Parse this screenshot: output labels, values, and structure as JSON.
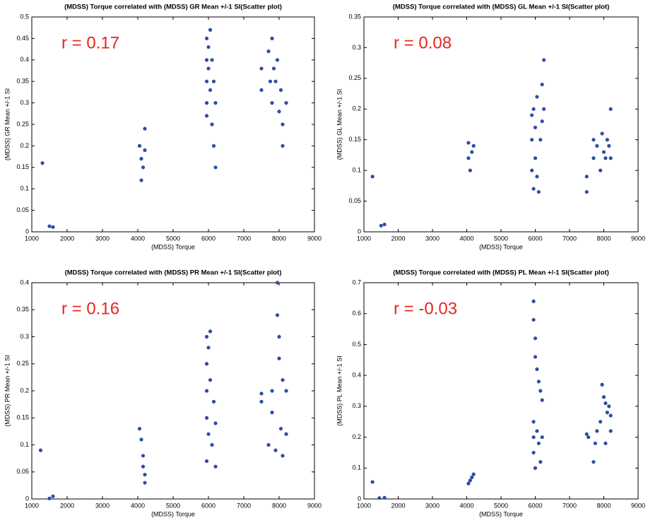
{
  "chart_data": [
    {
      "type": "scatter",
      "title": "(MDSS) Torque correlated with (MDSS) GR Mean +/-1 SI(Scatter plot)",
      "xlabel": "(MDSS) Torque",
      "ylabel": "(MDSS) GR Mean +/-1 SI",
      "annotation": "r = 0.17",
      "color": "#2c4ea3",
      "xlim": [
        1000,
        9000
      ],
      "xticks": [
        1000,
        2000,
        3000,
        4000,
        5000,
        6000,
        7000,
        8000,
        9000
      ],
      "ylim": [
        0,
        0.5
      ],
      "yticks": [
        0,
        0.05,
        0.1,
        0.15,
        0.2,
        0.25,
        0.3,
        0.35,
        0.4,
        0.45,
        0.5
      ],
      "x": [
        1300,
        1500,
        1600,
        4050,
        4100,
        4100,
        4150,
        4200,
        4200,
        5950,
        5950,
        5950,
        5950,
        5950,
        6000,
        6000,
        6050,
        6050,
        6100,
        6100,
        6150,
        6150,
        6200,
        6200,
        7500,
        7500,
        7700,
        7800,
        7800,
        7850,
        7900,
        7950,
        8000,
        8050,
        8100,
        8100,
        8200,
        7750
      ],
      "y": [
        0.16,
        0.013,
        0.011,
        0.2,
        0.12,
        0.17,
        0.15,
        0.24,
        0.19,
        0.45,
        0.4,
        0.35,
        0.3,
        0.27,
        0.43,
        0.38,
        0.47,
        0.33,
        0.25,
        0.4,
        0.2,
        0.35,
        0.15,
        0.3,
        0.38,
        0.33,
        0.42,
        0.45,
        0.3,
        0.38,
        0.35,
        0.4,
        0.28,
        0.33,
        0.25,
        0.2,
        0.3,
        0.35
      ]
    },
    {
      "type": "scatter",
      "title": "(MDSS) Torque correlated with (MDSS) GL Mean +/-1 SI(Scatter plot)",
      "xlabel": "(MDSS) Torque",
      "ylabel": "(MDSS) GL Mean +/-1 SI",
      "annotation": "r = 0.08",
      "color": "#2c4ea3",
      "xlim": [
        1000,
        9000
      ],
      "xticks": [
        1000,
        2000,
        3000,
        4000,
        5000,
        6000,
        7000,
        8000,
        9000
      ],
      "ylim": [
        0,
        0.35
      ],
      "yticks": [
        0,
        0.05,
        0.1,
        0.15,
        0.2,
        0.25,
        0.3,
        0.35
      ],
      "x": [
        1250,
        1500,
        1600,
        4050,
        4050,
        4100,
        4150,
        4200,
        5900,
        5900,
        5900,
        5950,
        5950,
        6000,
        6000,
        6050,
        6050,
        6100,
        6150,
        6200,
        6200,
        6250,
        6250,
        7500,
        7500,
        7700,
        7700,
        7800,
        7900,
        7950,
        8000,
        8050,
        8100,
        8150,
        8200,
        8200
      ],
      "y": [
        0.09,
        0.01,
        0.012,
        0.145,
        0.12,
        0.1,
        0.13,
        0.14,
        0.19,
        0.15,
        0.1,
        0.2,
        0.07,
        0.12,
        0.17,
        0.22,
        0.09,
        0.065,
        0.15,
        0.18,
        0.24,
        0.28,
        0.2,
        0.065,
        0.09,
        0.15,
        0.12,
        0.14,
        0.1,
        0.16,
        0.13,
        0.12,
        0.15,
        0.14,
        0.2,
        0.12
      ]
    },
    {
      "type": "scatter",
      "title": "(MDSS) Torque correlated with (MDSS) PR Mean +/-1 SI(Scatter plot)",
      "xlabel": "(MDSS) Torque",
      "ylabel": "(MDSS) PR Mean +/-1 SI",
      "annotation": "r = 0.16",
      "color": "#2c4ea3",
      "xlim": [
        1000,
        9000
      ],
      "xticks": [
        1000,
        2000,
        3000,
        4000,
        5000,
        6000,
        7000,
        8000,
        9000
      ],
      "ylim": [
        0,
        0.4
      ],
      "yticks": [
        0,
        0.05,
        0.1,
        0.15,
        0.2,
        0.25,
        0.3,
        0.35,
        0.4
      ],
      "x": [
        1250,
        1500,
        1600,
        4050,
        4100,
        4150,
        4150,
        4200,
        4200,
        5950,
        5950,
        5950,
        5950,
        5950,
        6000,
        6000,
        6050,
        6050,
        6100,
        6150,
        6200,
        6200,
        7500,
        7500,
        7700,
        7800,
        7800,
        7900,
        7950,
        7950,
        8000,
        8000,
        8050,
        8100,
        8100,
        8200,
        8200
      ],
      "y": [
        0.09,
        0.001,
        0.005,
        0.13,
        0.11,
        0.08,
        0.06,
        0.03,
        0.045,
        0.3,
        0.25,
        0.2,
        0.15,
        0.07,
        0.28,
        0.12,
        0.31,
        0.22,
        0.1,
        0.18,
        0.06,
        0.14,
        0.18,
        0.195,
        0.1,
        0.16,
        0.2,
        0.09,
        0.4,
        0.34,
        0.3,
        0.26,
        0.13,
        0.22,
        0.08,
        0.2,
        0.12
      ]
    },
    {
      "type": "scatter",
      "title": "(MDSS) Torque correlated with (MDSS) PL Mean +/-1 SI(Scatter plot)",
      "xlabel": "(MDSS) Torque",
      "ylabel": "(MDSS) PL Mean +/-1 SI",
      "annotation": "r = -0.03",
      "color": "#2c4ea3",
      "xlim": [
        1000,
        9000
      ],
      "xticks": [
        1000,
        2000,
        3000,
        4000,
        5000,
        6000,
        7000,
        8000,
        9000
      ],
      "ylim": [
        0,
        0.7
      ],
      "yticks": [
        0,
        0.1,
        0.2,
        0.3,
        0.4,
        0.5,
        0.6,
        0.7
      ],
      "x": [
        1250,
        1450,
        1600,
        4050,
        4100,
        4150,
        4200,
        5950,
        5950,
        6000,
        6000,
        6050,
        6100,
        6150,
        6200,
        5950,
        5950,
        5950,
        6000,
        6050,
        6100,
        6150,
        6200,
        7500,
        7550,
        7700,
        7750,
        7800,
        7900,
        7950,
        8000,
        8050,
        8100,
        8150,
        8200,
        8200,
        8050
      ],
      "y": [
        0.055,
        0.003,
        0.004,
        0.05,
        0.06,
        0.07,
        0.08,
        0.64,
        0.58,
        0.52,
        0.46,
        0.42,
        0.38,
        0.35,
        0.32,
        0.25,
        0.2,
        0.15,
        0.1,
        0.22,
        0.18,
        0.12,
        0.2,
        0.21,
        0.2,
        0.12,
        0.18,
        0.22,
        0.25,
        0.37,
        0.33,
        0.31,
        0.28,
        0.3,
        0.27,
        0.22,
        0.18
      ]
    }
  ]
}
